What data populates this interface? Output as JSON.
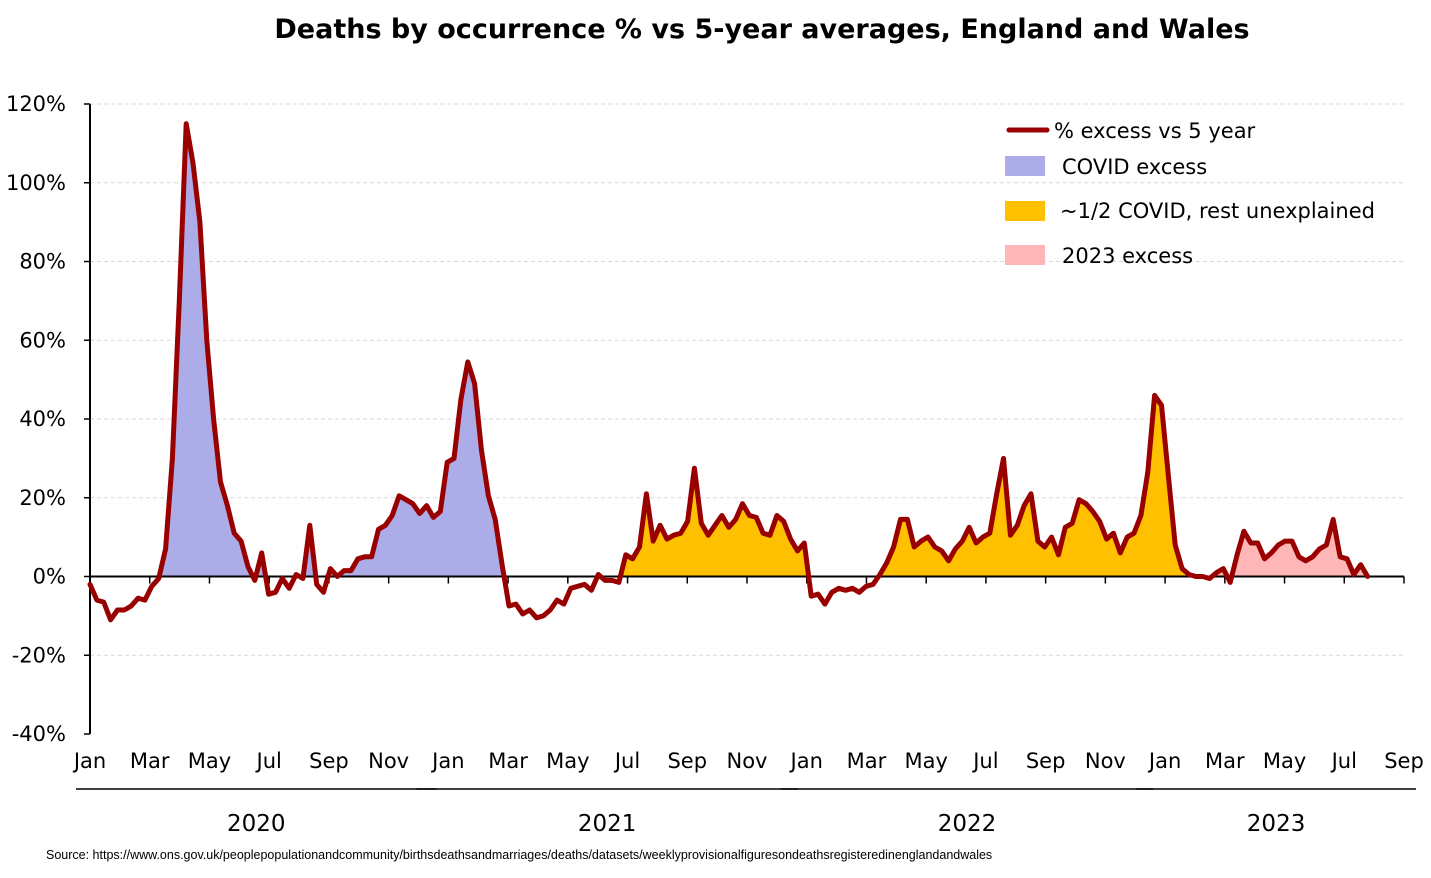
{
  "title": "Deaths by occurrence % vs 5-year averages, England and Wales",
  "source": "Source: https://www.ons.gov.uk/peoplepopulationandcommunity/birthsdeathsandmarriages/deaths/datasets/weeklyprovisionalfiguresondeathsregisteredinenglandandwales",
  "chart_data": {
    "type": "area",
    "title": "Deaths by occurrence % vs 5-year averages, England and Wales",
    "xlabel": "",
    "ylabel": "",
    "ylim": [
      -40,
      120
    ],
    "yticks": [
      -40,
      -20,
      0,
      20,
      40,
      60,
      80,
      100,
      120
    ],
    "ytick_labels": [
      "-40%",
      "-20%",
      "0%",
      "20%",
      "40%",
      "60%",
      "80%",
      "100%",
      "120%"
    ],
    "xticks": [
      {
        "month": 0,
        "label": "Jan"
      },
      {
        "month": 2,
        "label": "Mar"
      },
      {
        "month": 4,
        "label": "May"
      },
      {
        "month": 6,
        "label": "Jul"
      },
      {
        "month": 8,
        "label": "Sep"
      },
      {
        "month": 10,
        "label": "Nov"
      },
      {
        "month": 12,
        "label": "Jan"
      },
      {
        "month": 14,
        "label": "Mar"
      },
      {
        "month": 16,
        "label": "May"
      },
      {
        "month": 18,
        "label": "Jul"
      },
      {
        "month": 20,
        "label": "Sep"
      },
      {
        "month": 22,
        "label": "Nov"
      },
      {
        "month": 24,
        "label": "Jan"
      },
      {
        "month": 26,
        "label": "Mar"
      },
      {
        "month": 28,
        "label": "May"
      },
      {
        "month": 30,
        "label": "Jul"
      },
      {
        "month": 32,
        "label": "Sep"
      },
      {
        "month": 34,
        "label": "Nov"
      },
      {
        "month": 36,
        "label": "Jan"
      },
      {
        "month": 38,
        "label": "Mar"
      },
      {
        "month": 40,
        "label": "May"
      },
      {
        "month": 42,
        "label": "Jul"
      },
      {
        "month": 44,
        "label": "Sep"
      }
    ],
    "years": [
      {
        "label": "2020",
        "start_month": 0,
        "end_month": 11.2
      },
      {
        "label": "2021",
        "start_month": 11.4,
        "end_month": 23.3
      },
      {
        "label": "2022",
        "start_month": 23.6,
        "end_month": 35.2
      },
      {
        "label": "2023",
        "start_month": 35.5,
        "end_month": 44.4
      }
    ],
    "grid": true,
    "legend_position": "top-right",
    "series": [
      {
        "name": "% excess vs 5 year",
        "color": "#990000",
        "kind": "line"
      },
      {
        "name": "COVID excess",
        "color": "#ACACE8",
        "kind": "area",
        "range": [
          "2020-01",
          "2021-03"
        ]
      },
      {
        "name": "~1/2 COVID, rest unexplained",
        "color": "#FFC000",
        "kind": "area",
        "range": [
          "2021-03",
          "2023-01"
        ]
      },
      {
        "name": "2023 excess",
        "color": "#FFB6B6",
        "kind": "area",
        "range": [
          "2023-01",
          "2023-08"
        ]
      }
    ],
    "x_unit": "months since Jan 2020",
    "points": [
      [
        0.0,
        -2
      ],
      [
        0.23,
        -6
      ],
      [
        0.46,
        -6.5
      ],
      [
        0.69,
        -11
      ],
      [
        0.92,
        -8.5
      ],
      [
        1.15,
        -8.5
      ],
      [
        1.38,
        -7.5
      ],
      [
        1.61,
        -5.5
      ],
      [
        1.84,
        -6
      ],
      [
        2.07,
        -2.5
      ],
      [
        2.3,
        -0.5
      ],
      [
        2.53,
        7
      ],
      [
        2.76,
        30
      ],
      [
        2.99,
        70
      ],
      [
        3.22,
        115
      ],
      [
        3.45,
        105
      ],
      [
        3.68,
        90
      ],
      [
        3.91,
        60
      ],
      [
        4.14,
        40
      ],
      [
        4.37,
        24
      ],
      [
        4.6,
        18
      ],
      [
        4.83,
        11
      ],
      [
        5.06,
        9
      ],
      [
        5.29,
        2.5
      ],
      [
        5.52,
        -1
      ],
      [
        5.75,
        6
      ],
      [
        5.98,
        -4.5
      ],
      [
        6.21,
        -4
      ],
      [
        6.44,
        -0.5
      ],
      [
        6.67,
        -3
      ],
      [
        6.9,
        0.5
      ],
      [
        7.13,
        -0.5
      ],
      [
        7.36,
        13
      ],
      [
        7.59,
        -2
      ],
      [
        7.82,
        -4
      ],
      [
        8.05,
        2
      ],
      [
        8.28,
        0
      ],
      [
        8.51,
        1.5
      ],
      [
        8.74,
        1.5
      ],
      [
        8.97,
        4.5
      ],
      [
        9.2,
        5
      ],
      [
        9.43,
        5
      ],
      [
        9.66,
        12
      ],
      [
        9.89,
        13
      ],
      [
        10.12,
        15.5
      ],
      [
        10.35,
        20.5
      ],
      [
        10.58,
        19.5
      ],
      [
        10.81,
        18.5
      ],
      [
        11.04,
        16
      ],
      [
        11.27,
        18
      ],
      [
        11.5,
        15
      ],
      [
        11.73,
        16.5
      ],
      [
        11.96,
        29
      ],
      [
        12.19,
        30
      ],
      [
        12.42,
        45
      ],
      [
        12.65,
        54.5
      ],
      [
        12.88,
        49
      ],
      [
        13.11,
        32
      ],
      [
        13.34,
        20.5
      ],
      [
        13.57,
        14.5
      ],
      [
        13.8,
        3
      ],
      [
        14.03,
        -7.5
      ],
      [
        14.26,
        -7
      ],
      [
        14.49,
        -9.5
      ],
      [
        14.72,
        -8.5
      ],
      [
        14.95,
        -10.5
      ],
      [
        15.18,
        -10
      ],
      [
        15.41,
        -8.5
      ],
      [
        15.64,
        -6
      ],
      [
        15.87,
        -7
      ],
      [
        16.1,
        -3
      ],
      [
        16.33,
        -2.5
      ],
      [
        16.56,
        -2
      ],
      [
        16.79,
        -3.5
      ],
      [
        17.02,
        0.5
      ],
      [
        17.25,
        -1
      ],
      [
        17.48,
        -1
      ],
      [
        17.71,
        -1.5
      ],
      [
        17.94,
        5.5
      ],
      [
        18.17,
        4.5
      ],
      [
        18.4,
        7.5
      ],
      [
        18.63,
        21
      ],
      [
        18.86,
        9
      ],
      [
        19.09,
        13
      ],
      [
        19.32,
        9.5
      ],
      [
        19.55,
        10.5
      ],
      [
        19.78,
        11
      ],
      [
        20.01,
        14
      ],
      [
        20.24,
        27.5
      ],
      [
        20.47,
        13.5
      ],
      [
        20.7,
        10.5
      ],
      [
        20.93,
        13
      ],
      [
        21.16,
        15.5
      ],
      [
        21.39,
        12.5
      ],
      [
        21.62,
        14.5
      ],
      [
        21.85,
        18.5
      ],
      [
        22.08,
        15.5
      ],
      [
        22.31,
        15
      ],
      [
        22.54,
        11
      ],
      [
        22.77,
        10.5
      ],
      [
        23.0,
        15.5
      ],
      [
        23.23,
        14
      ],
      [
        23.46,
        9.5
      ],
      [
        23.69,
        6.5
      ],
      [
        23.92,
        8.5
      ],
      [
        24.15,
        -5
      ],
      [
        24.38,
        -4.5
      ],
      [
        24.61,
        -7
      ],
      [
        24.84,
        -4
      ],
      [
        25.07,
        -3
      ],
      [
        25.3,
        -3.5
      ],
      [
        25.53,
        -3
      ],
      [
        25.76,
        -4
      ],
      [
        25.99,
        -2.5
      ],
      [
        26.22,
        -2
      ],
      [
        26.45,
        0.5
      ],
      [
        26.68,
        3.5
      ],
      [
        26.91,
        7.5
      ],
      [
        27.14,
        14.5
      ],
      [
        27.37,
        14.5
      ],
      [
        27.6,
        7.5
      ],
      [
        27.83,
        9
      ],
      [
        28.06,
        10
      ],
      [
        28.29,
        7.5
      ],
      [
        28.52,
        6.5
      ],
      [
        28.75,
        4
      ],
      [
        28.98,
        7
      ],
      [
        29.21,
        9
      ],
      [
        29.44,
        12.5
      ],
      [
        29.67,
        8.5
      ],
      [
        29.9,
        10
      ],
      [
        30.13,
        11
      ],
      [
        30.36,
        21
      ],
      [
        30.59,
        30
      ],
      [
        30.82,
        10.5
      ],
      [
        31.05,
        13
      ],
      [
        31.28,
        18
      ],
      [
        31.51,
        21
      ],
      [
        31.74,
        9
      ],
      [
        31.97,
        7.5
      ],
      [
        32.2,
        10
      ],
      [
        32.43,
        5.5
      ],
      [
        32.66,
        12.5
      ],
      [
        32.89,
        13.5
      ],
      [
        33.12,
        19.5
      ],
      [
        33.35,
        18.5
      ],
      [
        33.58,
        16.5
      ],
      [
        33.81,
        14
      ],
      [
        34.04,
        9.5
      ],
      [
        34.27,
        11
      ],
      [
        34.5,
        6
      ],
      [
        34.73,
        10
      ],
      [
        34.96,
        11
      ],
      [
        35.19,
        15.5
      ],
      [
        35.42,
        26.5
      ],
      [
        35.65,
        46
      ],
      [
        35.88,
        43.5
      ],
      [
        36.11,
        25.5
      ],
      [
        36.34,
        8
      ],
      [
        36.57,
        2
      ],
      [
        36.8,
        0.5
      ],
      [
        37.03,
        0
      ],
      [
        37.26,
        0
      ],
      [
        37.49,
        -0.5
      ],
      [
        37.72,
        1
      ],
      [
        37.95,
        2
      ],
      [
        38.18,
        -1.5
      ],
      [
        38.41,
        5.5
      ],
      [
        38.64,
        11.5
      ],
      [
        38.87,
        8.5
      ],
      [
        39.1,
        8.5
      ],
      [
        39.33,
        4.5
      ],
      [
        39.56,
        6
      ],
      [
        39.79,
        8
      ],
      [
        40.02,
        9
      ],
      [
        40.25,
        9
      ],
      [
        40.48,
        5
      ],
      [
        40.71,
        4
      ],
      [
        40.94,
        5
      ],
      [
        41.17,
        7
      ],
      [
        41.4,
        8
      ],
      [
        41.63,
        14.5
      ],
      [
        41.86,
        5
      ],
      [
        42.09,
        4.5
      ],
      [
        42.32,
        0.5
      ],
      [
        42.55,
        3
      ],
      [
        42.78,
        0
      ]
    ]
  }
}
